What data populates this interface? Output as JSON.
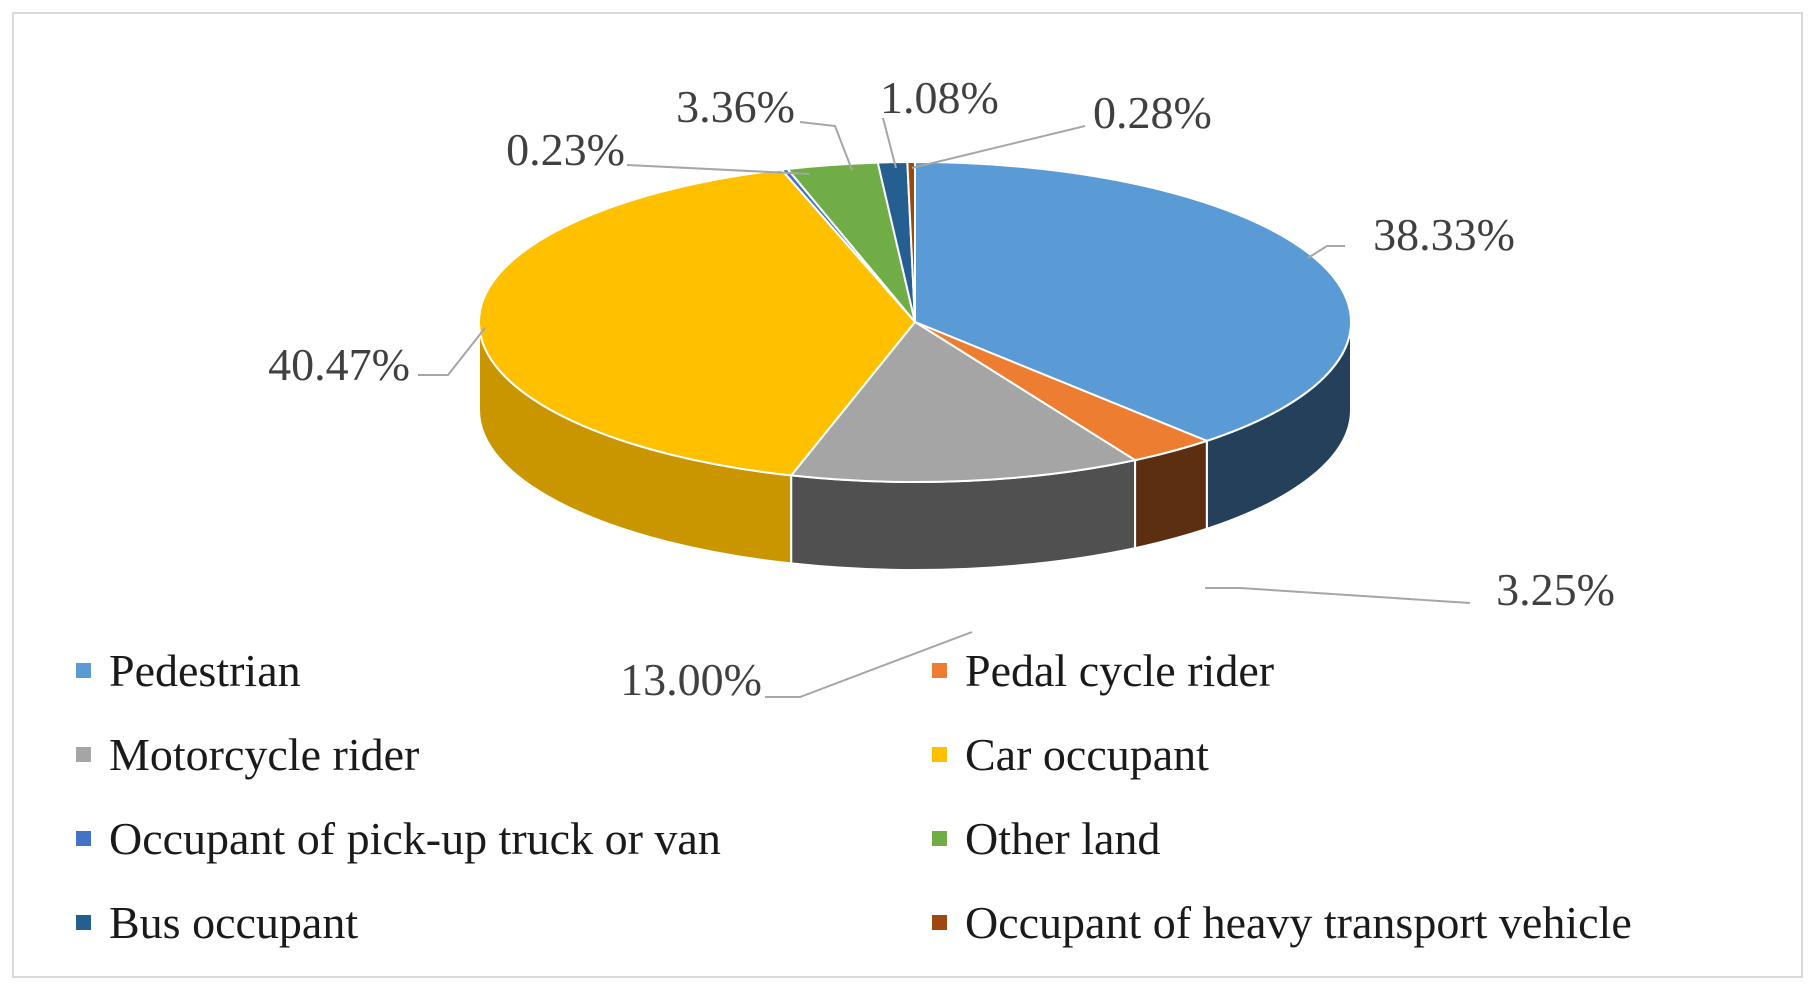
{
  "chart_data": {
    "type": "pie",
    "style": "3d",
    "series": [
      {
        "name": "Pedestrian",
        "value": 38.33,
        "label": "38.33%",
        "color": "#5b9bd5",
        "side_color": "#24405a"
      },
      {
        "name": "Pedal cycle rider",
        "value": 3.25,
        "label": "3.25%",
        "color": "#ed7d31",
        "side_color": "#5c2f10"
      },
      {
        "name": "Motorcycle rider",
        "value": 13.0,
        "label": "13.00%",
        "color": "#a5a5a5",
        "side_color": "#505050"
      },
      {
        "name": "Car occupant",
        "value": 40.47,
        "label": "40.47%",
        "color": "#ffc000",
        "side_color": "#c99600"
      },
      {
        "name": "Occupant of pick-up truck or van",
        "value": 0.23,
        "label": "0.23%",
        "color": "#4472c4",
        "side_color": "#23407a"
      },
      {
        "name": "Other land",
        "value": 3.36,
        "label": "3.36%",
        "color": "#70ad47",
        "side_color": "#3b6a22"
      },
      {
        "name": "Bus occupant",
        "value": 1.08,
        "label": "1.08%",
        "color": "#255e91",
        "side_color": "#12304a"
      },
      {
        "name": "Occupant of heavy transport vehicle",
        "value": 0.28,
        "label": "0.28%",
        "color": "#9e480e",
        "side_color": "#5a2606"
      }
    ],
    "legend_position": "bottom"
  }
}
